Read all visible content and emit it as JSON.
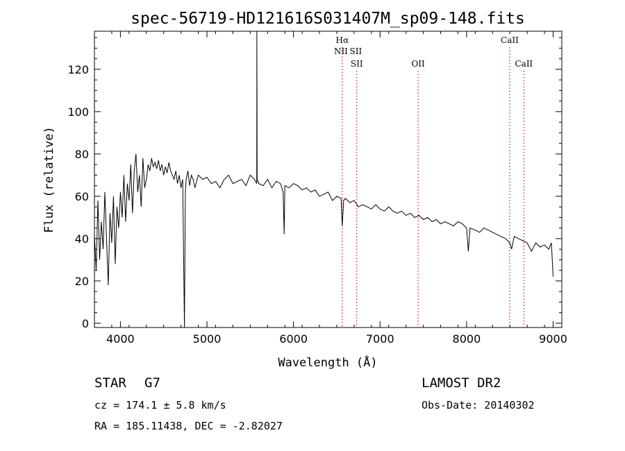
{
  "chart_data": {
    "type": "line",
    "title": "spec-56719-HD121616S031407M_sp09-148.fits",
    "xlabel": "Wavelength (Å)",
    "ylabel": "Flux (relative)",
    "xlim": [
      3700,
      9100
    ],
    "ylim": [
      -2,
      138
    ],
    "xticks": [
      4000,
      5000,
      6000,
      7000,
      8000,
      9000
    ],
    "yticks": [
      0,
      20,
      40,
      60,
      80,
      100,
      120
    ],
    "grid": false,
    "series": [
      {
        "color": "#000000",
        "x": [
          3700,
          3720,
          3740,
          3760,
          3780,
          3800,
          3820,
          3840,
          3860,
          3880,
          3900,
          3920,
          3940,
          3960,
          3980,
          4000,
          4020,
          4040,
          4060,
          4080,
          4100,
          4120,
          4140,
          4160,
          4180,
          4200,
          4220,
          4240,
          4260,
          4280,
          4300,
          4320,
          4340,
          4360,
          4380,
          4400,
          4420,
          4440,
          4460,
          4480,
          4500,
          4520,
          4540,
          4560,
          4580,
          4600,
          4620,
          4640,
          4660,
          4680,
          4700,
          4720,
          4740,
          4750,
          4760,
          4780,
          4800,
          4820,
          4840,
          4860,
          4880,
          4900,
          4950,
          5000,
          5050,
          5100,
          5150,
          5200,
          5250,
          5300,
          5350,
          5400,
          5450,
          5500,
          5550,
          5575,
          5577,
          5580,
          5600,
          5650,
          5700,
          5750,
          5800,
          5850,
          5880,
          5892,
          5900,
          5950,
          6000,
          6050,
          6100,
          6150,
          6200,
          6250,
          6300,
          6350,
          6400,
          6450,
          6500,
          6550,
          6563,
          6580,
          6600,
          6650,
          6700,
          6750,
          6800,
          6850,
          6900,
          6950,
          7000,
          7050,
          7100,
          7150,
          7200,
          7250,
          7300,
          7350,
          7400,
          7450,
          7500,
          7550,
          7600,
          7650,
          7700,
          7750,
          7800,
          7850,
          7900,
          7950,
          8000,
          8020,
          8040,
          8100,
          8150,
          8200,
          8250,
          8300,
          8350,
          8400,
          8450,
          8500,
          8520,
          8550,
          8600,
          8650,
          8700,
          8750,
          8800,
          8850,
          8900,
          8950,
          8980,
          9000
        ],
        "y": [
          42,
          25,
          58,
          30,
          48,
          35,
          62,
          40,
          18,
          52,
          38,
          60,
          28,
          55,
          45,
          62,
          50,
          70,
          48,
          66,
          58,
          75,
          52,
          72,
          80,
          62,
          70,
          55,
          78,
          64,
          68,
          75,
          72,
          78,
          74,
          76,
          73,
          77,
          72,
          75,
          70,
          74,
          71,
          76,
          72,
          70,
          68,
          72,
          66,
          70,
          64,
          68,
          -2,
          62,
          68,
          72,
          65,
          70,
          68,
          64,
          67,
          70,
          68,
          69,
          66,
          67,
          64,
          68,
          70,
          66,
          67,
          68,
          65,
          70,
          68,
          66,
          138,
          68,
          66,
          65,
          68,
          64,
          67,
          66,
          62,
          42,
          65,
          64,
          66,
          65,
          63,
          64,
          62,
          63,
          60,
          61,
          62,
          58,
          60,
          59,
          46,
          58,
          59,
          57,
          58,
          55,
          56,
          55,
          54,
          56,
          54,
          53,
          55,
          53,
          52,
          53,
          51,
          52,
          50,
          51,
          49,
          50,
          48,
          49,
          47,
          48,
          47,
          46,
          48,
          47,
          45,
          34,
          45,
          44,
          43,
          45,
          44,
          43,
          42,
          41,
          40,
          38,
          35,
          41,
          40,
          39,
          38,
          34,
          38,
          36,
          37,
          35,
          38,
          22
        ]
      }
    ],
    "line_ids": [
      {
        "label": "Hα",
        "x": 6563,
        "level": 1
      },
      {
        "label": "NII",
        "x": 6548,
        "level": 2
      },
      {
        "label": "SII",
        "x": 6720,
        "level": 2
      },
      {
        "label": "SII",
        "x": 6731,
        "level": 3
      },
      {
        "label": "OII",
        "x": 7440,
        "level": 3
      },
      {
        "label": "CaII",
        "x": 8498,
        "level": 1
      },
      {
        "label": "CaII",
        "x": 8662,
        "level": 3
      }
    ],
    "line_id_color": "#cc2222"
  },
  "info": {
    "object_class": "STAR",
    "subclass": "G7",
    "survey": "LAMOST DR2",
    "cz": "cz = 174.1 ± 5.8 km/s",
    "obs_date": "Obs-Date: 20140302",
    "coords": "RA = 185.11438, DEC =  -2.82027"
  }
}
